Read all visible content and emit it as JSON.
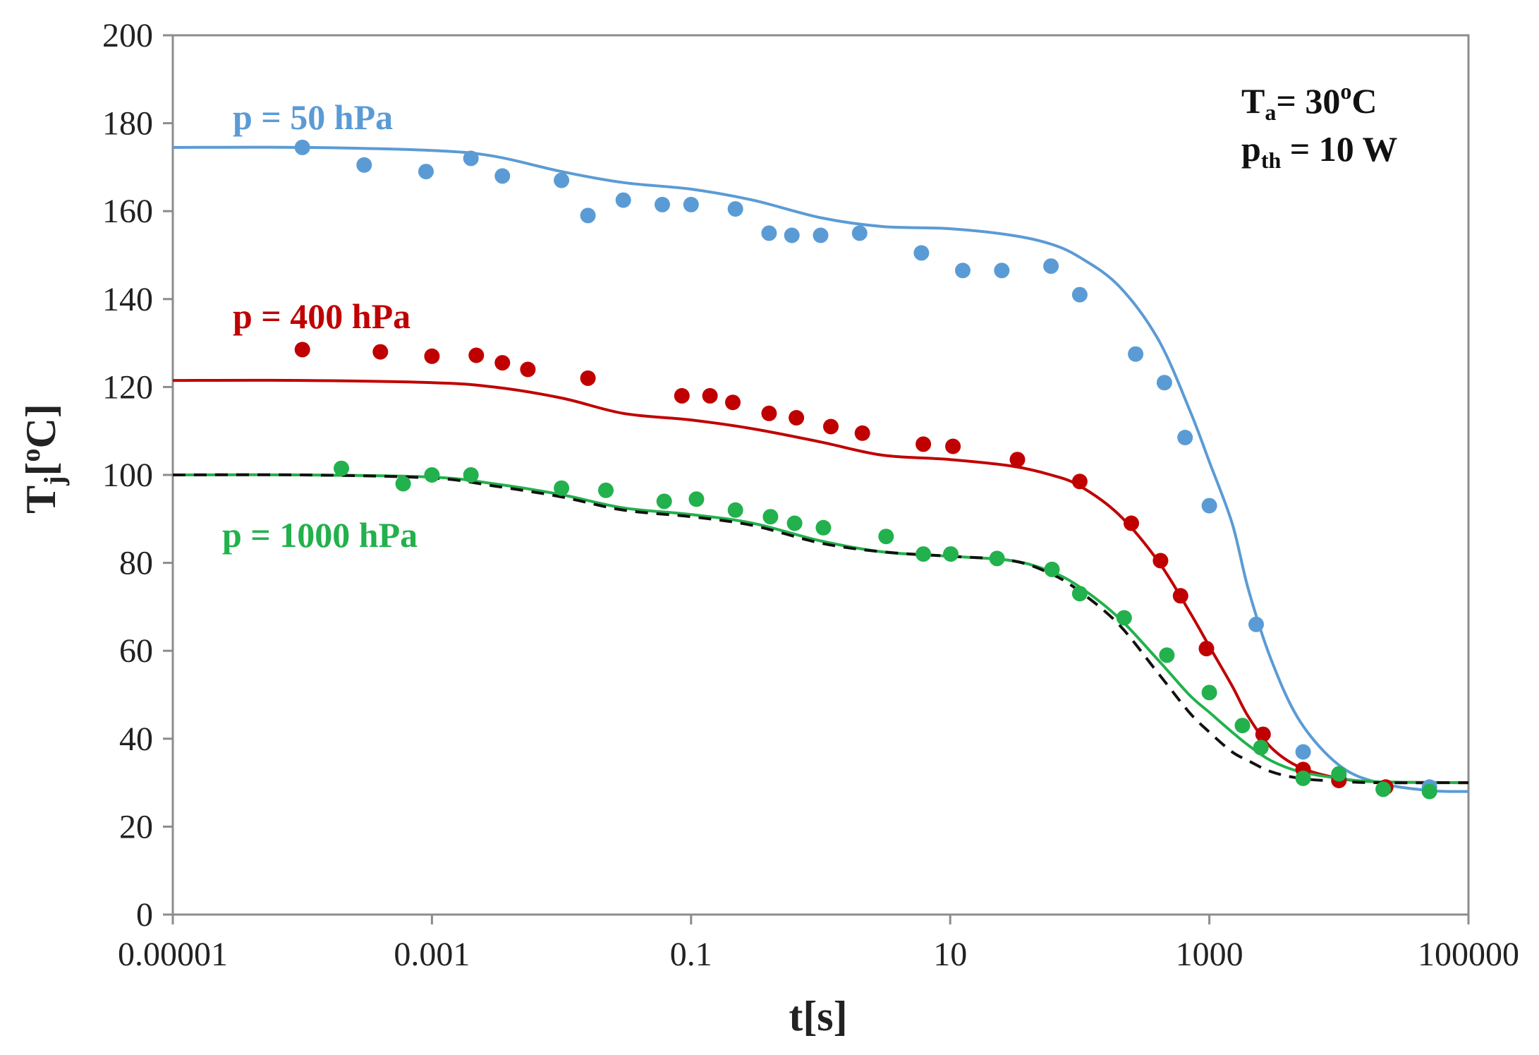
{
  "chart_data": {
    "type": "scatter",
    "title": "",
    "xlabel": "t[s]",
    "ylabel_main": "T",
    "ylabel_sub": "j",
    "ylabel_rest": "[",
    "ylabel_sup": "o",
    "ylabel_end": "C]",
    "xscale": "log",
    "xlim": [
      1e-05,
      100000
    ],
    "ylim": [
      0,
      200
    ],
    "grid": false,
    "x_ticks": [
      1e-05,
      0.001,
      0.1,
      10,
      1000,
      100000
    ],
    "x_tick_labels": [
      "0.00001",
      "0.001",
      "0.1",
      "10",
      "1000",
      "100000"
    ],
    "y_ticks": [
      0,
      20,
      40,
      60,
      80,
      100,
      120,
      140,
      160,
      180,
      200
    ],
    "y_tick_labels": [
      "0",
      "20",
      "40",
      "60",
      "80",
      "100",
      "120",
      "140",
      "160",
      "180",
      "200"
    ],
    "annotations": {
      "ta_main": "T",
      "ta_sub": "a",
      "ta_mid": "= 30",
      "ta_sup": "o",
      "ta_end": "C",
      "pth_main": "p",
      "pth_sub": "th",
      "pth_end": " = 10 W"
    },
    "series": [
      {
        "name": "p = 50 hPa",
        "color": "#5b9bd5",
        "points": [
          [
            0.0001,
            174.5
          ],
          [
            0.0003,
            170.5
          ],
          [
            0.0009,
            169
          ],
          [
            0.002,
            172
          ],
          [
            0.0035,
            168
          ],
          [
            0.01,
            167
          ],
          [
            0.016,
            159
          ],
          [
            0.03,
            162.5
          ],
          [
            0.06,
            161.5
          ],
          [
            0.1,
            161.5
          ],
          [
            0.22,
            160.5
          ],
          [
            0.4,
            155
          ],
          [
            0.6,
            154.5
          ],
          [
            1.0,
            154.5
          ],
          [
            2.0,
            155
          ],
          [
            6.0,
            150.5
          ],
          [
            12.5,
            146.5
          ],
          [
            25,
            146.5
          ],
          [
            60,
            147.5
          ],
          [
            100,
            141
          ],
          [
            270,
            127.5
          ],
          [
            450,
            121
          ],
          [
            650,
            108.5
          ],
          [
            1000,
            93
          ],
          [
            2300,
            66
          ],
          [
            5300,
            37
          ],
          [
            10000,
            31
          ],
          [
            22000,
            28.5
          ],
          [
            50000,
            29
          ]
        ],
        "fit": [
          [
            1e-05,
            174.5
          ],
          [
            0.0001,
            174.5
          ],
          [
            0.001,
            173.8
          ],
          [
            0.003,
            172.5
          ],
          [
            0.01,
            169
          ],
          [
            0.03,
            166.5
          ],
          [
            0.1,
            165
          ],
          [
            0.3,
            162.5
          ],
          [
            1,
            158.5
          ],
          [
            3,
            156.5
          ],
          [
            10,
            156
          ],
          [
            30,
            154.5
          ],
          [
            60,
            152.5
          ],
          [
            100,
            149.5
          ],
          [
            200,
            143
          ],
          [
            400,
            131
          ],
          [
            700,
            115
          ],
          [
            1000,
            103
          ],
          [
            1500,
            89
          ],
          [
            2000,
            74
          ],
          [
            3000,
            58
          ],
          [
            5000,
            44
          ],
          [
            10000,
            34
          ],
          [
            20000,
            30
          ],
          [
            50000,
            28.2
          ],
          [
            100000,
            28
          ]
        ]
      },
      {
        "name": "p = 400 hPa",
        "color": "#c00000",
        "points": [
          [
            0.0001,
            128.5
          ],
          [
            0.0004,
            128
          ],
          [
            0.001,
            127
          ],
          [
            0.0022,
            127.2
          ],
          [
            0.0035,
            125.5
          ],
          [
            0.0055,
            124
          ],
          [
            0.016,
            122
          ],
          [
            0.085,
            118
          ],
          [
            0.14,
            118
          ],
          [
            0.21,
            116.5
          ],
          [
            0.4,
            114
          ],
          [
            0.65,
            113
          ],
          [
            1.2,
            111
          ],
          [
            2.1,
            109.5
          ],
          [
            6.2,
            107
          ],
          [
            10.5,
            106.5
          ],
          [
            33,
            103.5
          ],
          [
            100,
            98.5
          ],
          [
            250,
            89
          ],
          [
            420,
            80.5
          ],
          [
            600,
            72.5
          ],
          [
            950,
            60.5
          ],
          [
            2600,
            41
          ],
          [
            5300,
            33
          ],
          [
            10000,
            30.5
          ],
          [
            23000,
            29
          ]
        ],
        "fit": [
          [
            1e-05,
            121.5
          ],
          [
            0.0001,
            121.5
          ],
          [
            0.001,
            121
          ],
          [
            0.003,
            120
          ],
          [
            0.01,
            117.5
          ],
          [
            0.03,
            114
          ],
          [
            0.1,
            112.5
          ],
          [
            0.3,
            110.5
          ],
          [
            1,
            107.5
          ],
          [
            3,
            104.5
          ],
          [
            10,
            103.5
          ],
          [
            30,
            102
          ],
          [
            60,
            100
          ],
          [
            100,
            97.5
          ],
          [
            200,
            91
          ],
          [
            400,
            80.5
          ],
          [
            700,
            69
          ],
          [
            1000,
            61
          ],
          [
            1500,
            52
          ],
          [
            2000,
            45
          ],
          [
            3000,
            38
          ],
          [
            5000,
            33.5
          ],
          [
            10000,
            31
          ],
          [
            20000,
            30.2
          ],
          [
            100000,
            30
          ]
        ]
      },
      {
        "name": "p = 1000 hPa",
        "color": "#22b14c",
        "points": [
          [
            0.0002,
            101.5
          ],
          [
            0.0006,
            98
          ],
          [
            0.001,
            100
          ],
          [
            0.002,
            100
          ],
          [
            0.01,
            97
          ],
          [
            0.022,
            96.5
          ],
          [
            0.062,
            94
          ],
          [
            0.11,
            94.5
          ],
          [
            0.22,
            92
          ],
          [
            0.41,
            90.5
          ],
          [
            0.63,
            89
          ],
          [
            1.05,
            88
          ],
          [
            3.2,
            86
          ],
          [
            6.2,
            82
          ],
          [
            10.1,
            82
          ],
          [
            23,
            81
          ],
          [
            61,
            78.5
          ],
          [
            100,
            73
          ],
          [
            220,
            67.5
          ],
          [
            470,
            59
          ],
          [
            1000,
            50.5
          ],
          [
            1800,
            43
          ],
          [
            2500,
            38
          ],
          [
            5300,
            31
          ],
          [
            10000,
            32
          ],
          [
            22000,
            28.5
          ],
          [
            50000,
            28
          ]
        ],
        "fit": [
          [
            1e-05,
            100
          ],
          [
            0.0001,
            100
          ],
          [
            0.001,
            99.5
          ],
          [
            0.003,
            98
          ],
          [
            0.01,
            95.5
          ],
          [
            0.03,
            92.5
          ],
          [
            0.1,
            91
          ],
          [
            0.3,
            89
          ],
          [
            1,
            85
          ],
          [
            3,
            82.5
          ],
          [
            10,
            81.5
          ],
          [
            30,
            80.5
          ],
          [
            60,
            78
          ],
          [
            100,
            74.5
          ],
          [
            200,
            67.5
          ],
          [
            400,
            58
          ],
          [
            700,
            50
          ],
          [
            1000,
            46
          ],
          [
            1500,
            41.5
          ],
          [
            2000,
            38.5
          ],
          [
            3000,
            35
          ],
          [
            5000,
            32.5
          ],
          [
            10000,
            31
          ],
          [
            20000,
            30.2
          ],
          [
            100000,
            30
          ]
        ]
      }
    ],
    "reference_line": {
      "style": "dashed",
      "color": "#111111",
      "fit": [
        [
          1e-05,
          100
        ],
        [
          0.0001,
          100
        ],
        [
          0.001,
          99.3
        ],
        [
          0.003,
          97.5
        ],
        [
          0.01,
          95
        ],
        [
          0.03,
          92
        ],
        [
          0.1,
          90.5
        ],
        [
          0.3,
          88.5
        ],
        [
          1,
          84.5
        ],
        [
          3,
          82.5
        ],
        [
          10,
          81.5
        ],
        [
          30,
          80.5
        ],
        [
          60,
          77.5
        ],
        [
          100,
          73.5
        ],
        [
          200,
          66
        ],
        [
          400,
          55
        ],
        [
          700,
          46
        ],
        [
          1000,
          41.5
        ],
        [
          1500,
          37
        ],
        [
          2000,
          35
        ],
        [
          3000,
          32.5
        ],
        [
          5000,
          31
        ],
        [
          10000,
          30.3
        ],
        [
          20000,
          30
        ],
        [
          100000,
          30
        ]
      ]
    }
  }
}
